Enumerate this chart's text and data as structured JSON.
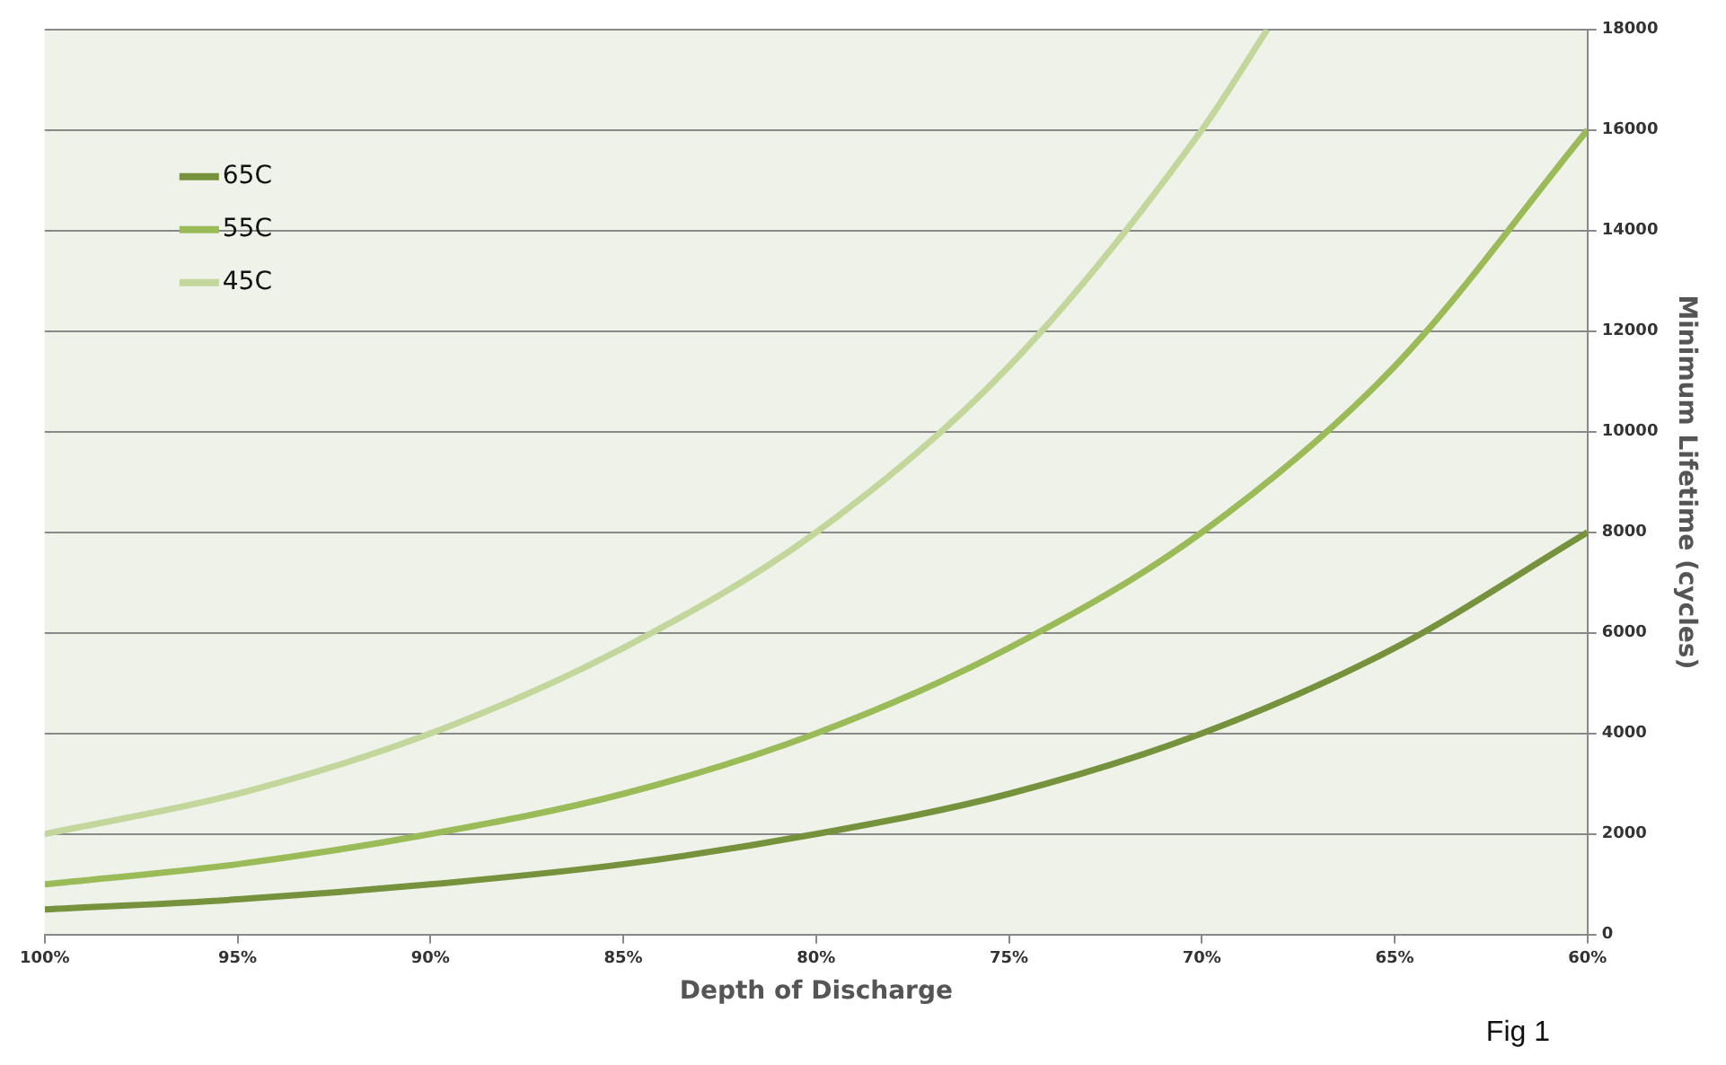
{
  "chart_data": {
    "type": "line",
    "xlabel": "Depth of Discharge",
    "ylabel": "Minimum Lifetime (cycles)",
    "annotations": [
      "Fig 1"
    ],
    "xlim": [
      100,
      60
    ],
    "xticks": [
      {
        "value": 100,
        "label": "100%"
      },
      {
        "value": 95,
        "label": "95%"
      },
      {
        "value": 90,
        "label": "90%"
      },
      {
        "value": 85,
        "label": "85%"
      },
      {
        "value": 80,
        "label": "80%"
      },
      {
        "value": 75,
        "label": "75%"
      },
      {
        "value": 70,
        "label": "70%"
      },
      {
        "value": 65,
        "label": "65%"
      },
      {
        "value": 60,
        "label": "60%"
      }
    ],
    "ylim": [
      0,
      18000
    ],
    "yticks": [
      0,
      2000,
      4000,
      6000,
      8000,
      10000,
      12000,
      14000,
      16000,
      18000
    ],
    "grid": "y",
    "legend": "top left",
    "marker": "none",
    "line_style": "solid",
    "series": [
      {
        "name": "65C",
        "color": "#76923c",
        "x": [
          100,
          95,
          90,
          85,
          80,
          75,
          70,
          65,
          60
        ],
        "values": [
          500,
          700,
          1000,
          1400,
          2000,
          2800,
          4000,
          5700,
          8000
        ]
      },
      {
        "name": "55C",
        "color": "#9bbb59",
        "x": [
          100,
          95,
          90,
          85,
          80,
          75,
          70,
          65,
          60
        ],
        "values": [
          1000,
          1400,
          2000,
          2800,
          4000,
          5700,
          8000,
          11300,
          16000
        ]
      },
      {
        "name": "45C",
        "color": "#c3d69b",
        "x": [
          100,
          95,
          90,
          85,
          80,
          75,
          70,
          68.3
        ],
        "values": [
          2000,
          2800,
          4000,
          5700,
          8000,
          11300,
          16000,
          18000
        ]
      }
    ]
  }
}
